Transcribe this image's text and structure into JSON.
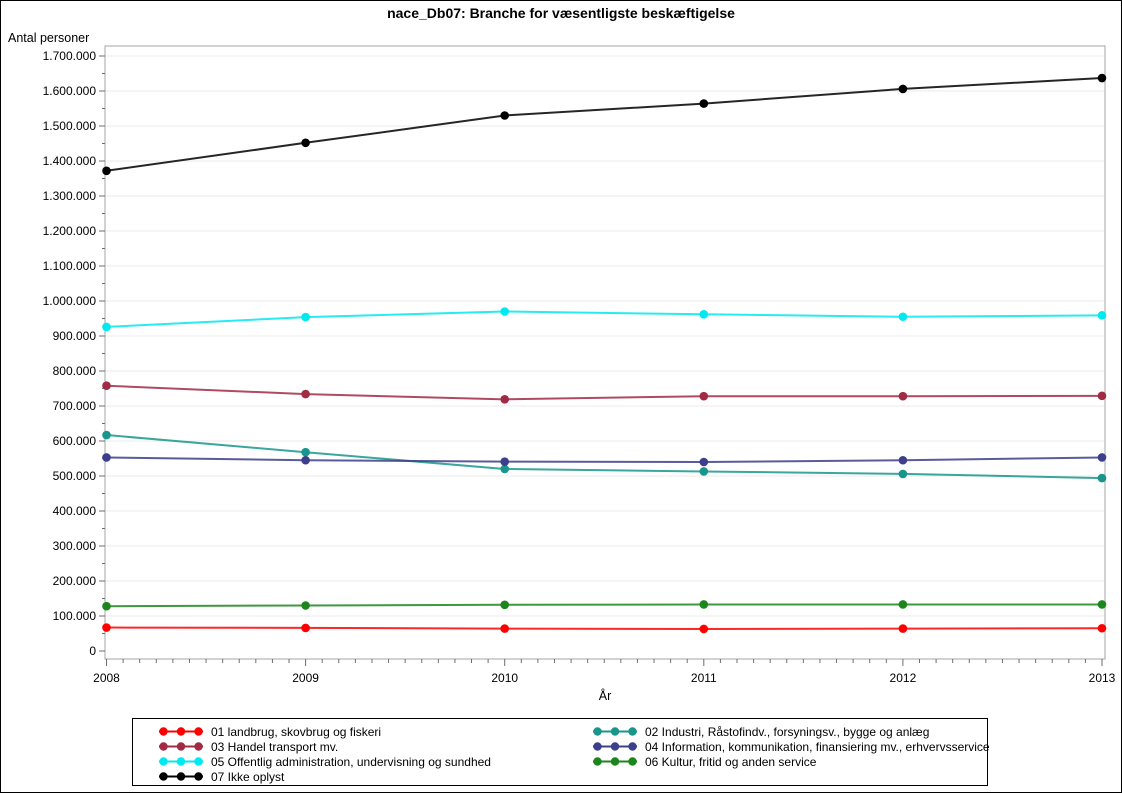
{
  "figure": {
    "background": "#FFFFFF",
    "border_color": "#000000",
    "frame_color": "#A6A6A6",
    "gridline_color": "#EBEBEB",
    "tick_color": "#6E6E6E"
  },
  "chart_data": {
    "type": "line",
    "title": "nace_Db07: Branche for væsentligste beskæftigelse",
    "xlabel": "År",
    "ylabel": "Antal personer",
    "x_labels": [
      "2008",
      "2009",
      "2010",
      "2011",
      "2012",
      "2013"
    ],
    "ylim": [
      0,
      1700000
    ],
    "ytick_values": [
      0,
      100000,
      200000,
      300000,
      400000,
      500000,
      600000,
      700000,
      800000,
      900000,
      1000000,
      1100000,
      1200000,
      1300000,
      1400000,
      1500000,
      1600000,
      1700000
    ],
    "ytick_labels": [
      "0",
      "100.000",
      "200.000",
      "300.000",
      "400.000",
      "500.000",
      "600.000",
      "700.000",
      "800.000",
      "900.000",
      "1.000.000",
      "1.100.000",
      "1.200.000",
      "1.300.000",
      "1.400.000",
      "1.500.000",
      "1.600.000",
      "1.700.000"
    ],
    "grid": "horizontal-major",
    "legend_position": "bottom",
    "marker": "circle",
    "series": [
      {
        "name": "01 landbrug, skovbrug og fiskeri",
        "color": "#FF0000",
        "values": [
          67000,
          66000,
          64000,
          63000,
          64000,
          65000
        ]
      },
      {
        "name": "02 Industri, Råstofindv., forsyningsv., bygge og anlæg",
        "color": "#18968C",
        "values": [
          617000,
          568000,
          520000,
          513000,
          506000,
          494000
        ]
      },
      {
        "name": "03 Handel transport mv.",
        "color": "#A12B45",
        "values": [
          758000,
          734000,
          719000,
          728000,
          728000,
          729000
        ]
      },
      {
        "name": "04 Information, kommunikation, finansiering mv., erhvervsservice",
        "color": "#3D3E8C",
        "values": [
          553000,
          545000,
          541000,
          540000,
          545000,
          553000
        ]
      },
      {
        "name": "05 Offentlig administration, undervisning og sundhed",
        "color": "#00E8F0",
        "values": [
          926000,
          954000,
          970000,
          962000,
          955000,
          959000
        ]
      },
      {
        "name": "06 Kultur, fritid og anden service",
        "color": "#1C861C",
        "values": [
          128000,
          130000,
          132000,
          133000,
          133000,
          133000
        ]
      },
      {
        "name": "07 Ikke oplyst",
        "color": "#000000",
        "values": [
          1372000,
          1452000,
          1530000,
          1564000,
          1606000,
          1637000
        ]
      }
    ]
  }
}
